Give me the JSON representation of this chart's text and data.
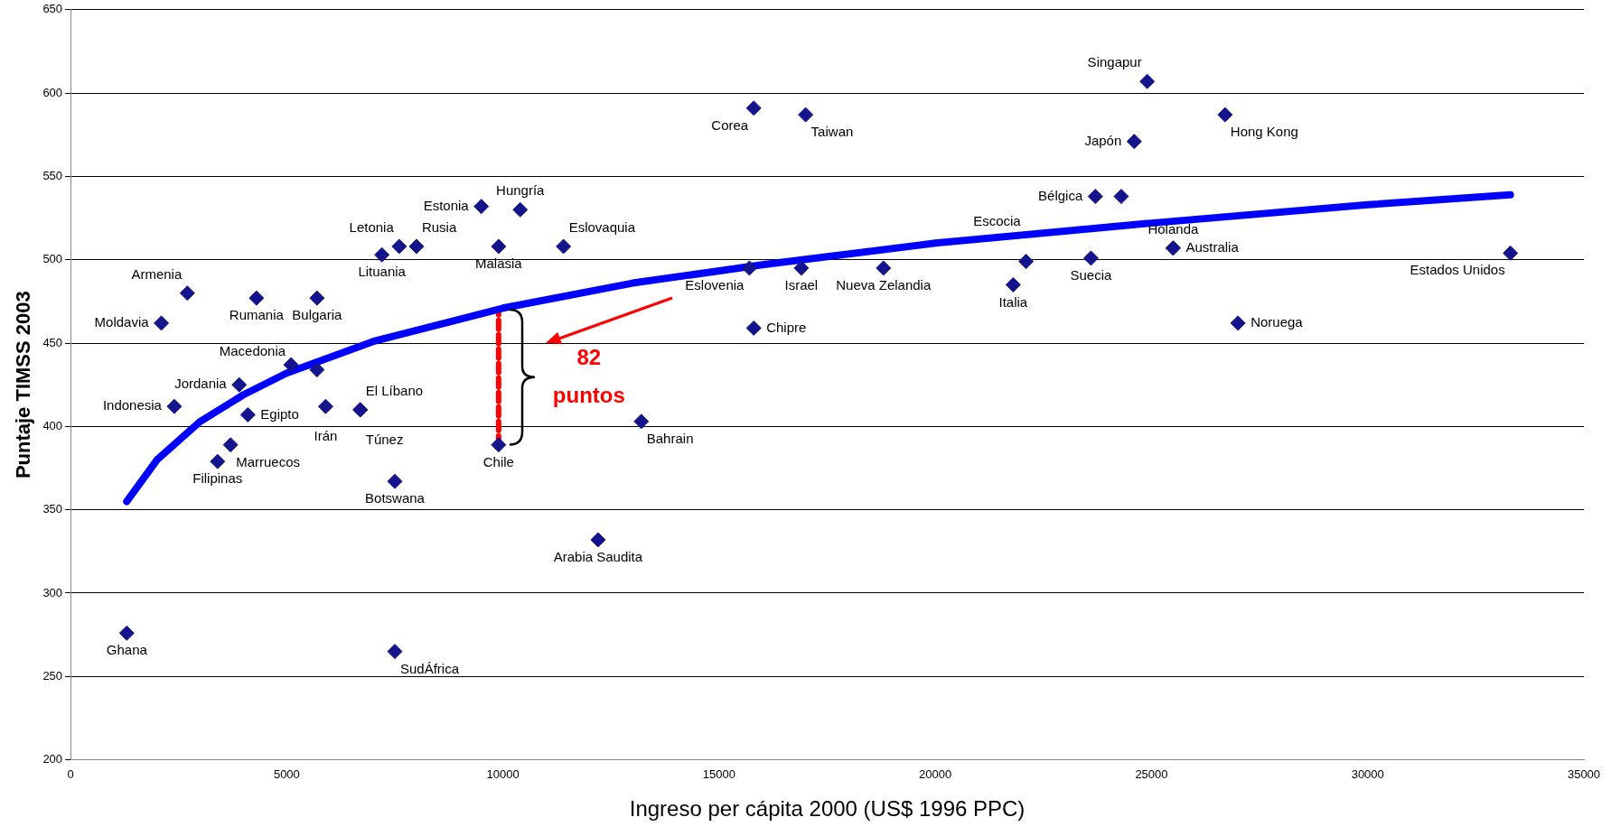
{
  "chart_data": {
    "type": "scatter",
    "xlabel": "Ingreso per cápita 2000 (US$ 1996 PPC)",
    "ylabel": "Puntaje TIMSS 2003",
    "xlim": [
      0,
      35000
    ],
    "xticks": [
      0,
      5000,
      10000,
      15000,
      20000,
      25000,
      30000,
      35000
    ],
    "ylim": [
      200,
      650
    ],
    "yticks": [
      200,
      250,
      300,
      350,
      400,
      450,
      500,
      550,
      600,
      650
    ],
    "grid": "y",
    "marker": "diamond",
    "series": [
      {
        "color": "#14148c",
        "x": [
          1300,
          7500,
          12200,
          7500,
          3400,
          3700,
          9900,
          13200,
          2400,
          4100,
          5900,
          6700,
          6700,
          3900,
          5100,
          5700,
          2100,
          2700,
          4300,
          5700,
          7200,
          7600,
          8000,
          9500,
          9900,
          10400,
          11400,
          15800,
          17000,
          15700,
          15800,
          16900,
          18800,
          21800,
          22100,
          23600,
          23700,
          24300,
          24600,
          24900,
          25500,
          25500,
          26700,
          27000,
          33300
        ],
        "values": [
          276,
          265,
          332,
          367,
          379,
          389,
          389,
          403,
          412,
          407,
          412,
          410,
          410,
          425,
          437,
          434,
          462,
          480,
          477,
          477,
          503,
          508,
          508,
          532,
          508,
          530,
          508,
          591,
          587,
          495,
          459,
          495,
          495,
          485,
          499,
          501,
          538,
          538,
          571,
          607,
          507,
          507,
          587,
          462,
          504
        ],
        "value_labels": [
          "Ghana",
          "SudÁfrica",
          "Arabia Saudita",
          "Botswana",
          "Filipinas",
          "Marruecos",
          "Chile",
          "Bahrain",
          "Indonesia",
          "Egipto",
          "Irán",
          "El Líbano",
          "Túnez",
          "Jordania",
          "Macedonia",
          null,
          "Moldavia",
          "Armenia",
          "Rumania",
          "Bulgaria",
          "Lituania",
          "Letonia",
          "Rusia",
          "Estonia",
          "Malasia",
          "Hungría",
          "Eslovaquia",
          "Corea",
          "Taiwan",
          "Eslovenia",
          "Chipre",
          "Israel",
          "Nueva Zelandia",
          "Italia",
          "Escocia",
          "Suecia",
          "Bélgica",
          null,
          "Japón",
          "Singapur",
          "Holanda",
          "Australia",
          "Hong Kong",
          "Noruega",
          "Estados Unidos"
        ]
      },
      {
        "type": "line",
        "color": "#0000ff",
        "marker": "none",
        "x": [
          1300,
          2000,
          3000,
          4000,
          5000,
          7000,
          10000,
          13000,
          16000,
          20000,
          25000,
          30000,
          33300
        ],
        "values": [
          355,
          380,
          403,
          419,
          432,
          451,
          471,
          486,
          497,
          510,
          522,
          533,
          539
        ]
      },
      {
        "type": "line",
        "name": "82 puntos",
        "color": "#ff0000",
        "marker": "none",
        "line_style": "dashed",
        "x": [
          9900,
          9900
        ],
        "values": [
          389,
          470
        ]
      }
    ]
  }
}
